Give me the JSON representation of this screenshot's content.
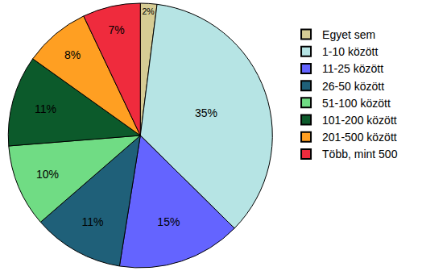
{
  "chart_data": {
    "type": "pie",
    "categories": [
      "Egyet sem",
      "1-10 között",
      "11-25 között",
      "26-50 között",
      "51-100 között",
      "101-200 között",
      "201-500 között",
      "Több, mint 500"
    ],
    "values": [
      2,
      35,
      15,
      11,
      10,
      11,
      8,
      7
    ],
    "value_labels": [
      "2%",
      "35%",
      "15%",
      "11%",
      "10%",
      "11%",
      "8%",
      "7%"
    ],
    "colors": [
      "#d6cc94",
      "#b6e4e4",
      "#6464ff",
      "#1f6079",
      "#70dc84",
      "#0c5a2b",
      "#ff9f22",
      "#ef2b3d"
    ],
    "data_labels": true,
    "legend": "right"
  }
}
